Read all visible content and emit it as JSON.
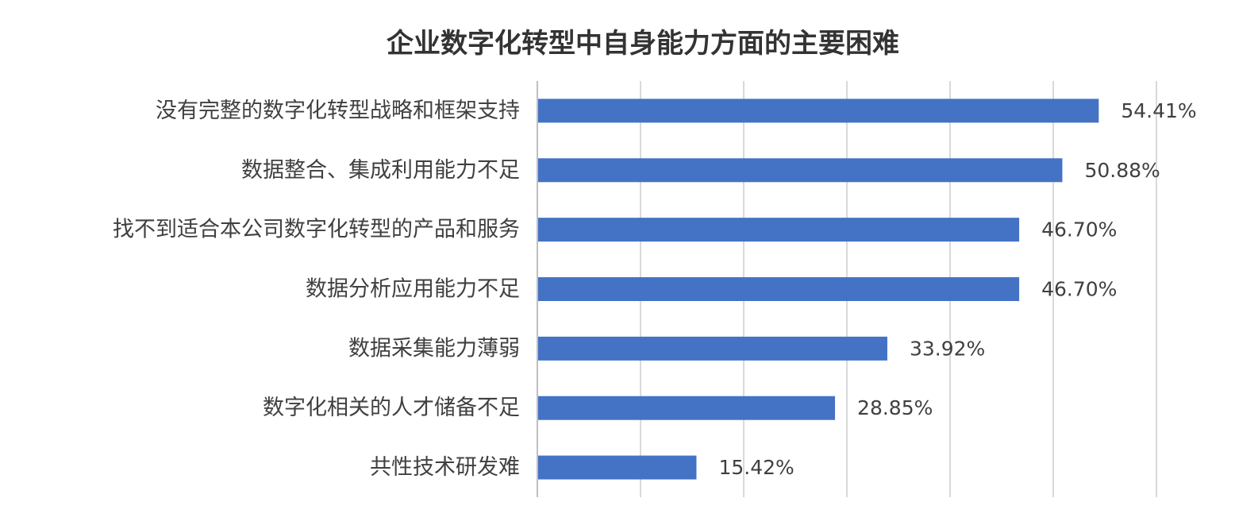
{
  "chart_data": {
    "type": "bar",
    "orientation": "horizontal",
    "title": "企业数字化转型中自身能力方面的主要困难",
    "categories": [
      "没有完整的数字化转型战略和框架支持",
      "数据整合、集成利用能力不足",
      "找不到适合本公司数字化转型的产品和服务",
      "数据分析应用能力不足",
      "数据采集能力薄弱",
      "数字化相关的人才储备不足",
      "共性技术研发难"
    ],
    "values": [
      54.41,
      50.88,
      46.7,
      46.7,
      33.92,
      28.85,
      15.42
    ],
    "value_labels": [
      "54.41%",
      "50.88%",
      "46.70%",
      "46.70%",
      "33.92%",
      "28.85%",
      "15.42%"
    ],
    "xlim": [
      0,
      60
    ],
    "grid": true,
    "legend": "none",
    "bar_color": "#4472C4"
  }
}
